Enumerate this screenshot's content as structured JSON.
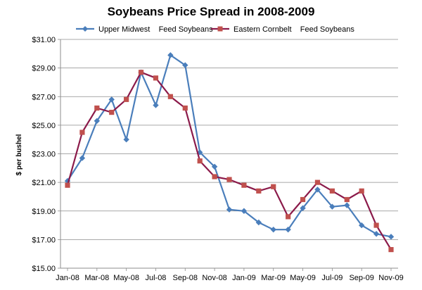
{
  "chart_data": {
    "type": "line",
    "title": "Soybeans Price Spread in 2008-2009",
    "xlabel": "",
    "ylabel": "$ per bushel",
    "ylim": [
      15,
      31
    ],
    "y_ticks": [
      "$15.00",
      "$17.00",
      "$19.00",
      "$21.00",
      "$23.00",
      "$25.00",
      "$27.00",
      "$29.00",
      "$31.00"
    ],
    "y_tick_values": [
      15,
      17,
      19,
      21,
      23,
      25,
      27,
      29,
      31
    ],
    "x": [
      "Jan-08",
      "Feb-08",
      "Mar-08",
      "Apr-08",
      "May-08",
      "Jun-08",
      "Jul-08",
      "Aug-08",
      "Sep-08",
      "Oct-08",
      "Nov-08",
      "Dec-08",
      "Jan-09",
      "Feb-09",
      "Mar-09",
      "Apr-09",
      "May-09",
      "Jun-09",
      "Jul-09",
      "Aug-09",
      "Sep-09",
      "Oct-09",
      "Nov-09"
    ],
    "x_tick_labels": [
      "Jan-08",
      "Mar-08",
      "May-08",
      "Jul-08",
      "Sep-08",
      "Nov-08",
      "Jan-09",
      "Mar-09",
      "May-09",
      "Jul-09",
      "Sep-09",
      "Nov-09"
    ],
    "x_tick_indices": [
      0,
      4,
      8,
      12,
      16,
      20,
      24,
      28,
      32,
      36,
      40,
      44
    ],
    "x_tick_note": "series are semi-monthly (two observations per month); tick labels every 2 months",
    "series": [
      {
        "name": "Upper Midwest    Feed Soybeans",
        "color": "#4a7ebb",
        "marker": "diamond",
        "x_index": [
          0,
          2,
          4,
          6,
          8,
          10,
          12,
          14,
          16,
          18,
          20,
          22,
          24,
          26,
          28,
          30,
          32,
          34,
          36,
          38,
          40,
          42,
          44
        ],
        "values": [
          21.1,
          22.7,
          25.3,
          26.8,
          24.0,
          28.7,
          26.4,
          29.9,
          29.2,
          23.1,
          22.1,
          19.1,
          19.0,
          18.2,
          17.7,
          17.7,
          19.2,
          20.5,
          19.3,
          19.4,
          18.0,
          17.4,
          17.2
        ]
      },
      {
        "name": "Eastern Cornbelt    Feed Soybeans",
        "color": "#8b1a4a",
        "marker": "square",
        "x_index": [
          0,
          2,
          4,
          6,
          8,
          10,
          12,
          14,
          16,
          18,
          20,
          22,
          24,
          26,
          28,
          30,
          32,
          34,
          36,
          38,
          40,
          42,
          44
        ],
        "values": [
          20.8,
          24.5,
          26.2,
          25.9,
          26.8,
          28.7,
          28.3,
          27.0,
          26.2,
          22.5,
          21.4,
          21.2,
          20.8,
          20.4,
          20.7,
          18.6,
          19.8,
          21.0,
          20.4,
          19.8,
          20.4,
          18.0,
          16.3
        ]
      }
    ],
    "grid": "horizontal",
    "legend_position": "top"
  }
}
